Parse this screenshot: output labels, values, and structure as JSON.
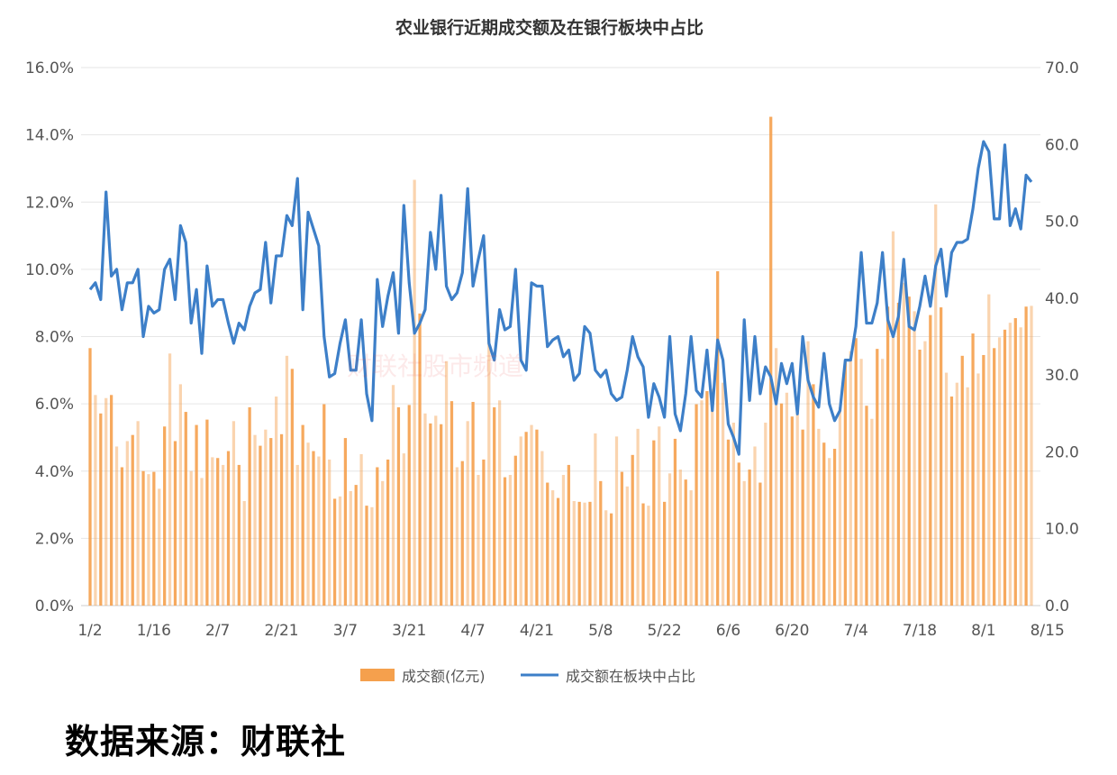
{
  "source_label": "数据来源：财联社",
  "watermark": "财联社股市频道",
  "chart_data": {
    "type": "bar+line",
    "title": "农业银行近期成交额及在银行板块中占比",
    "x_tick_labels": [
      "1/2",
      "1/16",
      "2/7",
      "2/21",
      "3/7",
      "3/21",
      "4/7",
      "4/21",
      "5/8",
      "5/22",
      "6/6",
      "6/20",
      "7/4",
      "7/18",
      "8/1",
      "8/15"
    ],
    "x_tick_index": [
      0,
      12,
      24,
      36,
      48,
      60,
      72,
      84,
      96,
      108,
      120,
      132,
      144,
      156,
      168,
      180
    ],
    "left_axis": {
      "ticks": [
        "0.0%",
        "2.0%",
        "4.0%",
        "6.0%",
        "8.0%",
        "10.0%",
        "12.0%",
        "14.0%",
        "16.0%"
      ],
      "range": [
        0,
        16
      ]
    },
    "right_axis": {
      "ticks": [
        "0.0",
        "10.0",
        "20.0",
        "30.0",
        "40.0",
        "50.0",
        "60.0",
        "70.0"
      ],
      "range": [
        0,
        70
      ]
    },
    "colors": {
      "bar": "#f5a04d",
      "line": "#3d7fc8"
    },
    "series": [
      {
        "name": "成交额(亿元)",
        "kind": "bar",
        "axis": "right",
        "values": [
          33.5,
          27.4,
          25.0,
          27.0,
          27.4,
          20.7,
          18.0,
          21.4,
          22.2,
          24.0,
          17.5,
          17.1,
          17.4,
          15.2,
          23.3,
          32.8,
          21.4,
          28.8,
          25.2,
          17.5,
          23.5,
          16.6,
          24.2,
          19.3,
          19.2,
          18.3,
          20.1,
          24.0,
          18.3,
          13.6,
          25.8,
          22.2,
          20.8,
          22.9,
          21.8,
          27.2,
          22.3,
          32.5,
          30.8,
          18.3,
          23.5,
          21.2,
          20.1,
          19.4,
          26.2,
          19.0,
          13.9,
          14.2,
          21.8,
          14.9,
          15.7,
          19.7,
          13.0,
          12.8,
          18.0,
          16.2,
          19.0,
          28.7,
          25.8,
          19.8,
          26.1,
          55.4,
          38.0,
          25.0,
          23.7,
          24.7,
          23.6,
          31.8,
          26.6,
          18.0,
          18.8,
          24.0,
          26.5,
          17.0,
          19.0,
          35.5,
          25.8,
          26.7,
          16.7,
          17.0,
          19.5,
          22.0,
          22.6,
          23.5,
          22.9,
          20.1,
          16.0,
          15.0,
          14.0,
          17.0,
          18.3,
          13.6,
          13.5,
          13.4,
          13.5,
          22.4,
          16.2,
          12.4,
          12.0,
          22.0,
          17.4,
          15.5,
          19.6,
          23.0,
          13.3,
          13.0,
          21.5,
          23.3,
          13.5,
          17.2,
          21.7,
          17.7,
          16.4,
          15.0,
          26.2,
          26.7,
          27.9,
          28.2,
          43.5,
          29.0,
          21.6,
          23.8,
          18.6,
          16.2,
          17.7,
          20.7,
          16.0,
          23.8,
          63.6,
          33.5,
          26.3,
          27.7,
          24.6,
          24.9,
          22.9,
          34.4,
          28.8,
          23.0,
          21.2,
          19.2,
          20.4,
          25.8,
          31.7,
          33.1,
          34.8,
          32.1,
          26.0,
          24.3,
          33.4,
          32.1,
          38.9,
          48.7,
          39.4,
          42.0,
          40.2,
          38.3,
          33.3,
          34.4,
          37.8,
          52.2,
          38.8,
          30.3,
          27.2,
          29.0,
          32.5,
          28.4,
          35.4,
          30.2,
          32.6,
          40.5,
          33.5,
          34.9,
          35.9,
          36.8,
          37.4,
          36.2,
          38.9,
          39.0
        ]
      },
      {
        "name": "成交额在板块中占比",
        "kind": "line",
        "axis": "left",
        "values": [
          9.4,
          9.6,
          9.1,
          12.3,
          9.8,
          10.0,
          8.8,
          9.6,
          9.6,
          10.0,
          8.0,
          8.9,
          8.7,
          8.8,
          10.0,
          10.3,
          9.1,
          11.3,
          10.8,
          8.4,
          9.4,
          7.5,
          10.1,
          8.9,
          9.1,
          9.1,
          8.4,
          7.8,
          8.4,
          8.2,
          8.9,
          9.3,
          9.4,
          10.8,
          9.0,
          10.4,
          10.4,
          11.6,
          11.3,
          12.7,
          8.8,
          11.7,
          11.2,
          10.7,
          8.0,
          6.8,
          6.9,
          7.8,
          8.5,
          7.0,
          7.0,
          8.5,
          6.3,
          5.5,
          9.7,
          8.3,
          9.2,
          9.9,
          8.1,
          11.9,
          9.6,
          8.1,
          8.4,
          8.8,
          11.1,
          10.0,
          12.2,
          9.5,
          9.1,
          9.3,
          9.9,
          12.4,
          9.5,
          10.3,
          11.0,
          7.8,
          7.3,
          8.8,
          8.2,
          8.3,
          10.0,
          7.3,
          7.0,
          9.6,
          9.5,
          9.5,
          7.7,
          7.9,
          8.0,
          7.4,
          7.6,
          6.7,
          6.9,
          8.3,
          8.1,
          7.0,
          6.8,
          7.0,
          6.3,
          6.1,
          6.2,
          7.0,
          8.0,
          7.4,
          7.1,
          5.6,
          6.6,
          6.2,
          5.6,
          8.0,
          5.7,
          5.2,
          6.3,
          8.0,
          6.4,
          6.2,
          7.6,
          5.8,
          7.9,
          7.3,
          5.4,
          5.0,
          4.5,
          8.5,
          6.1,
          8.0,
          6.3,
          7.1,
          6.8,
          6.0,
          7.2,
          6.6,
          7.2,
          5.7,
          8.0,
          6.7,
          6.2,
          5.9,
          7.5,
          6.0,
          5.5,
          5.8,
          7.3,
          7.3,
          8.3,
          10.5,
          8.4,
          8.4,
          9.0,
          10.5,
          8.5,
          8.0,
          8.6,
          10.3,
          8.3,
          8.2,
          8.9,
          9.8,
          8.9,
          10.1,
          10.6,
          9.2,
          10.5,
          10.8,
          10.8,
          10.9,
          11.8,
          13.0,
          13.8,
          13.5,
          11.5,
          11.5,
          13.7,
          11.3,
          11.8,
          11.2,
          12.8,
          12.6
        ]
      }
    ],
    "legend": {
      "position": "bottom-center"
    }
  }
}
